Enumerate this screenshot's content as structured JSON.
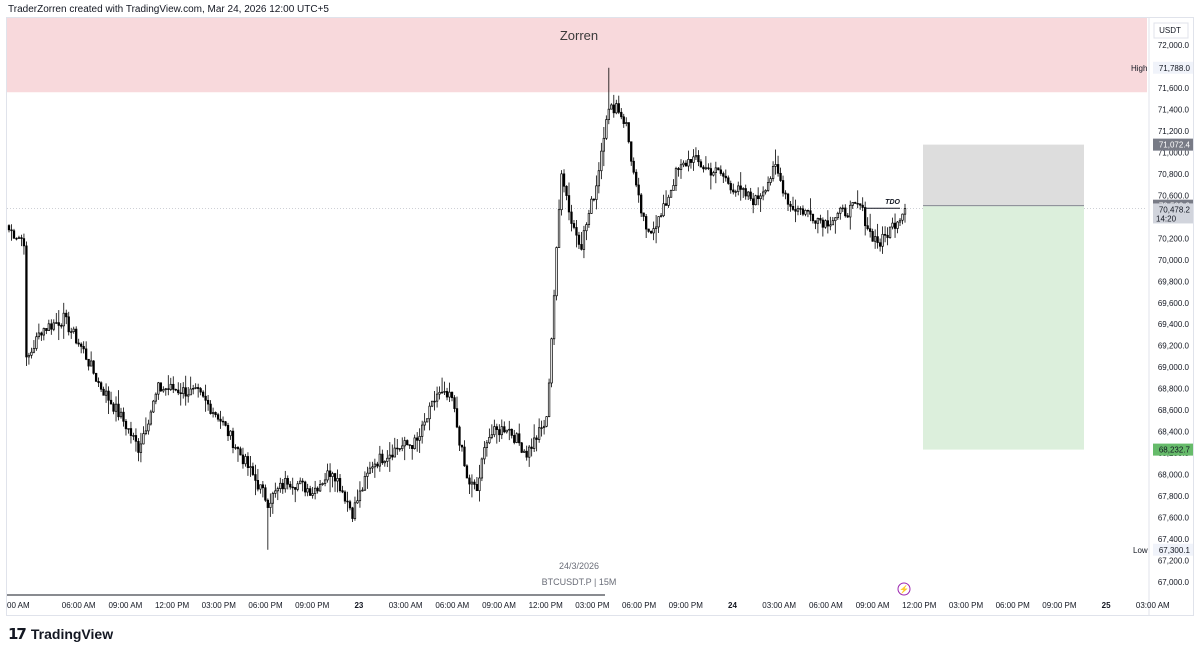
{
  "header": {
    "caption": "TraderZorren created with TradingView.com, Mar 24, 2026 12:00 UTC+5"
  },
  "footer": {
    "brand": "TradingView"
  },
  "chart_data": {
    "type": "candlestick",
    "symbol": "BTCUSDT.P",
    "interval": "15M",
    "currency": "USDT",
    "date_label": "24/3/2026",
    "zone_label": "Zorren",
    "level_label": "TDO",
    "ylim": [
      66900,
      72350
    ],
    "price_ticks": [
      67000,
      67200,
      67400,
      67600,
      67800,
      68000,
      68200,
      68400,
      68600,
      68800,
      69000,
      69200,
      69400,
      69600,
      69800,
      70000,
      70200,
      70400,
      70600,
      70800,
      71000,
      71200,
      71400,
      71600,
      71800,
      72000
    ],
    "price_tick_labels": [
      "67,000.0",
      "67,200.0",
      "67,400.0",
      "67,600.0",
      "67,800.0",
      "68,000.0",
      "68,200.0",
      "68,400.0",
      "68,600.0",
      "68,800.0",
      "69,000.0",
      "69,200.0",
      "69,400.0",
      "69,600.0",
      "69,800.0",
      "70,000.0",
      "70,200.0",
      "70,400.0",
      "70,600.0",
      "70,800.0",
      "71,000.0",
      "71,200.0",
      "71,400.0",
      "71,600.0",
      "71,800.0",
      "72,000.0"
    ],
    "time_labels": [
      "00 AM",
      "06:00 AM",
      "09:00 AM",
      "12:00 PM",
      "03:00 PM",
      "06:00 PM",
      "09:00 PM",
      "23",
      "03:00 AM",
      "06:00 AM",
      "09:00 AM",
      "12:00 PM",
      "03:00 PM",
      "06:00 PM",
      "09:00 PM",
      "24",
      "03:00 AM",
      "06:00 AM",
      "09:00 AM",
      "12:00 PM",
      "03:00 PM",
      "06:00 PM",
      "09:00 PM",
      "25",
      "03:00 AM"
    ],
    "high": {
      "label": "High",
      "value": 71788.0,
      "text": "71,788.0"
    },
    "low": {
      "label": "Low",
      "value": 67300.1,
      "text": "67,300.1"
    },
    "last_price": {
      "value": 70478.2,
      "text": "70,478.2",
      "countdown": "14:20"
    },
    "entry_price": {
      "value": 70503.9,
      "text": "70,503.9"
    },
    "stop_price": {
      "value": 71072.4,
      "text": "71,072.4"
    },
    "target_price": {
      "value": 68232.7,
      "text": "68,232.7"
    },
    "supply_zone": {
      "from": 71560,
      "to": 72350
    },
    "tdo_price": 70480,
    "anchor_closes": [
      [
        0,
        70280
      ],
      [
        6,
        70180
      ],
      [
        7,
        69050
      ],
      [
        13,
        69350
      ],
      [
        22,
        69450
      ],
      [
        30,
        69150
      ],
      [
        36,
        68850
      ],
      [
        46,
        68500
      ],
      [
        52,
        68250
      ],
      [
        60,
        68800
      ],
      [
        66,
        68800
      ],
      [
        76,
        68750
      ],
      [
        84,
        68550
      ],
      [
        94,
        68150
      ],
      [
        104,
        67750
      ],
      [
        112,
        67950
      ],
      [
        122,
        67850
      ],
      [
        130,
        68050
      ],
      [
        138,
        67650
      ],
      [
        146,
        68100
      ],
      [
        156,
        68250
      ],
      [
        164,
        68300
      ],
      [
        172,
        68750
      ],
      [
        178,
        68700
      ],
      [
        184,
        67950
      ],
      [
        188,
        67850
      ],
      [
        192,
        68350
      ],
      [
        200,
        68450
      ],
      [
        208,
        68200
      ],
      [
        216,
        68500
      ],
      [
        222,
        70850
      ],
      [
        226,
        70350
      ],
      [
        230,
        70150
      ],
      [
        236,
        70700
      ],
      [
        240,
        71350
      ],
      [
        244,
        71450
      ],
      [
        248,
        71250
      ],
      [
        252,
        70650
      ],
      [
        256,
        70250
      ],
      [
        262,
        70400
      ],
      [
        268,
        70800
      ],
      [
        274,
        70950
      ],
      [
        280,
        70850
      ],
      [
        286,
        70800
      ],
      [
        292,
        70650
      ],
      [
        300,
        70550
      ],
      [
        308,
        70850
      ],
      [
        314,
        70500
      ],
      [
        320,
        70450
      ],
      [
        328,
        70350
      ],
      [
        336,
        70450
      ],
      [
        342,
        70500
      ],
      [
        346,
        70250
      ],
      [
        350,
        70150
      ],
      [
        356,
        70350
      ],
      [
        360,
        70478
      ]
    ]
  }
}
